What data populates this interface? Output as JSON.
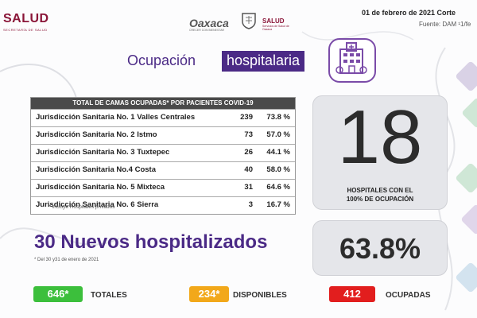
{
  "header": {
    "logo_left": "SALUD",
    "logo_left_sub": "SECRETARÍA DE SALUD",
    "logo_center": "Oaxaca",
    "logo_center_sub": "CRECER CON BIENESTAR",
    "logo_right": "SALUD",
    "logo_right_sub": "Servicios de Salud de Oaxaca",
    "date": "01 de febrero de  2021 Corte",
    "source": "Fuente: DAM ¹1/fe"
  },
  "title": {
    "part1": "Ocupación",
    "part2": "hospitalaria"
  },
  "table": {
    "header": "TOTAL DE CAMAS OCUPADAS* POR PACIENTES COVID-19",
    "rows": [
      {
        "name": "Jurisdicción Sanitaria No. 1 Valles Centrales",
        "count": "239",
        "pct": "73.8 %"
      },
      {
        "name": "Jurisdicción Sanitaria No. 2 Istmo",
        "count": "73",
        "pct": "57.0 %"
      },
      {
        "name": "Jurisdicción Sanitaria No. 3 Tuxtepec",
        "count": "26",
        "pct": "44.1 %"
      },
      {
        "name": "Jurisdicción Sanitaria No.4 Costa",
        "count": "40",
        "pct": "58.0 %"
      },
      {
        "name": "Jurisdicción Sanitaria No. 5 Mixteca",
        "count": "31",
        "pct": "64.6 %"
      },
      {
        "name": "Jurisdicción Sanitaria No. 6 Sierra",
        "count": "3",
        "pct": "16.7 %"
      }
    ],
    "note": "* Incluye Hospitales privados"
  },
  "hospitals_full": {
    "value": "18",
    "label_line1": "HOSPITALES CON EL",
    "label_line2": "100% DE OCUPACIÓN"
  },
  "occupancy": {
    "value": "63.8%"
  },
  "new_hospitalized": {
    "text": "30 Nuevos hospitalizados",
    "note": "* Del 30 y31 de enero de 2021"
  },
  "stats": {
    "totales": {
      "value": "646*",
      "label": "TOTALES",
      "color": "#3cbf3c"
    },
    "disponibles": {
      "value": "234*",
      "label": "DISPONIBLES",
      "color": "#f2a81a"
    },
    "ocupadas": {
      "value": "412",
      "label": "OCUPADAS",
      "color": "#e21e1e"
    }
  },
  "colors": {
    "accent": "#4b2a86",
    "brand": "#8a1538"
  },
  "icons": {
    "hospital": "hospital-building-icon",
    "seal": "oaxaca-seal-icon"
  }
}
